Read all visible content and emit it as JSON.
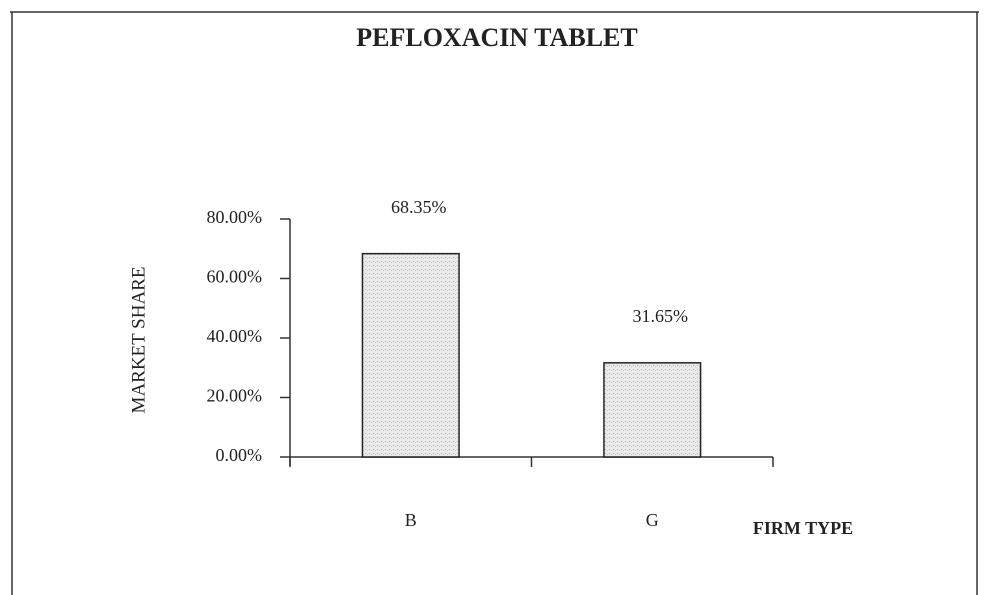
{
  "chart_data": {
    "type": "bar",
    "title": "PEFLOXACIN TABLET",
    "x_label": "FIRM TYPE",
    "y_label": "MARKET SHARE",
    "categories": [
      "B",
      "G"
    ],
    "values": [
      68.35,
      31.65
    ],
    "value_labels": [
      "68.35%",
      "31.65%"
    ],
    "color": "#dedede",
    "ylim": [
      0,
      80
    ],
    "yticks": [
      {
        "value": 0,
        "label": "0.00%"
      },
      {
        "value": 20,
        "label": "20.00%"
      },
      {
        "value": 40,
        "label": "40.00%"
      },
      {
        "value": 60,
        "label": "60.00%"
      },
      {
        "value": 80,
        "label": "80.00%"
      }
    ],
    "grid": false
  }
}
